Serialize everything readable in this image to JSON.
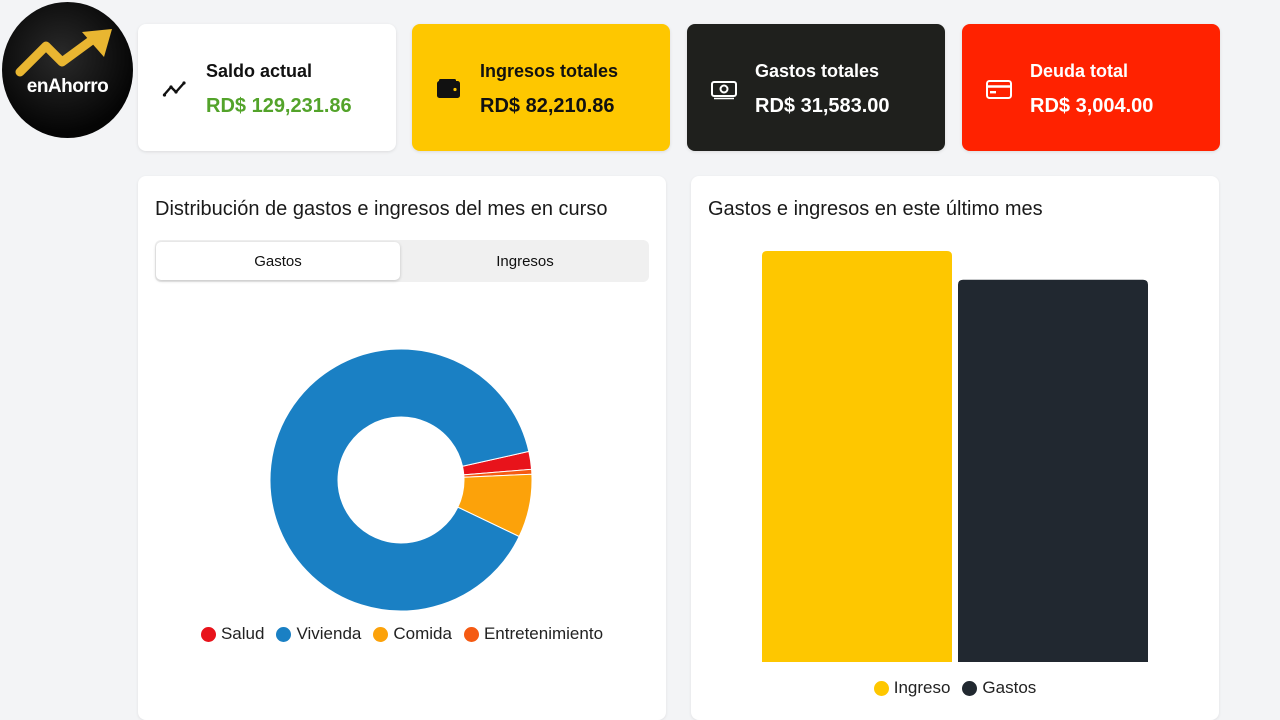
{
  "logo": {
    "text": "enAhorro"
  },
  "cards": [
    {
      "label": "Saldo actual",
      "value": "RD$ 129,231.86",
      "icon": "trend-line-icon"
    },
    {
      "label": "Ingresos totales",
      "value": "RD$ 82,210.86",
      "icon": "wallet-icon"
    },
    {
      "label": "Gastos totales",
      "value": "RD$ 31,583.00",
      "icon": "cash-icon"
    },
    {
      "label": "Deuda total",
      "value": "RD$ 3,004.00",
      "icon": "credit-card-icon"
    }
  ],
  "distribution": {
    "title": "Distribución de gastos e ingresos del mes en curso",
    "tabs": [
      "Gastos",
      "Ingresos"
    ],
    "active_tab": "Gastos"
  },
  "monthly": {
    "title": "Gastos e ingresos en este último mes"
  },
  "chart_data": [
    {
      "type": "pie",
      "variant": "donut",
      "categories": [
        "Salud",
        "Vivienda",
        "Comida",
        "Entretenimiento"
      ],
      "values": [
        2.2,
        89.4,
        7.8,
        0.6
      ],
      "colors": [
        "#e8131b",
        "#1a80c4",
        "#fca20a",
        "#f55a12"
      ],
      "legend": "bottom"
    },
    {
      "type": "bar",
      "categories": [
        "Ingreso",
        "Gastos"
      ],
      "values": [
        100,
        93
      ],
      "colors": [
        "#fec700",
        "#212830"
      ],
      "legend": "bottom",
      "grid": false
    }
  ]
}
